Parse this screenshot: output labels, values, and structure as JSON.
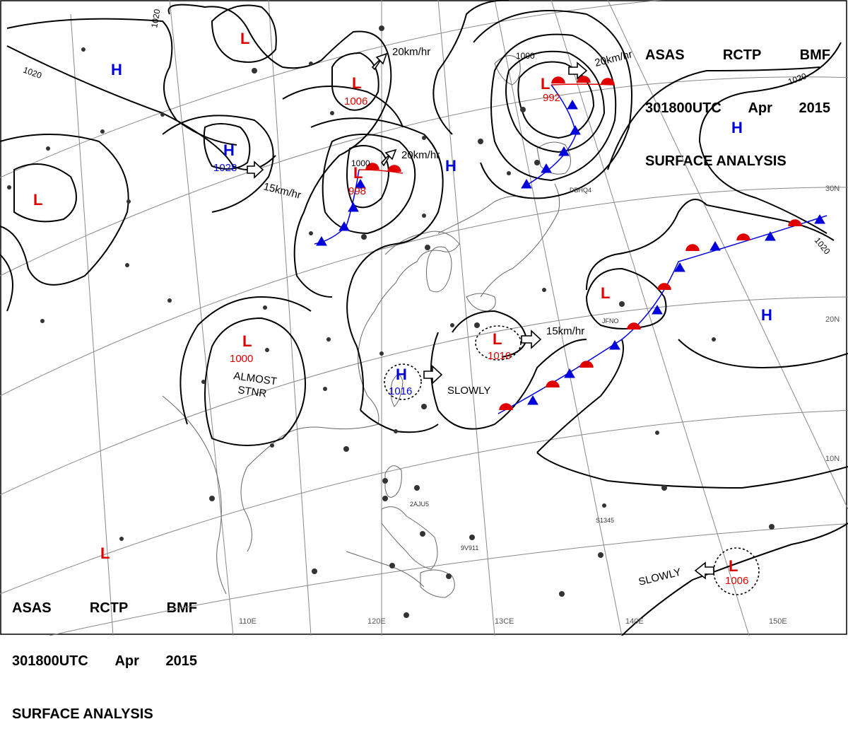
{
  "header": {
    "line1": [
      "ASAS",
      "RCTP",
      "BMF"
    ],
    "line2": [
      "301800UTC",
      "Apr",
      "2015"
    ],
    "line3": "SURFACE ANALYSIS"
  },
  "colors": {
    "low": "#e00000",
    "high": "#0000dd",
    "isobar": "#000000",
    "grid": "#888888"
  },
  "pressure_systems": [
    {
      "id": "L-mongolia",
      "type": "L",
      "value": ""
    },
    {
      "id": "L-north",
      "type": "L",
      "value": "1006"
    },
    {
      "id": "L-kamchatka",
      "type": "L",
      "value": "992"
    },
    {
      "id": "L-manchuria",
      "type": "L",
      "value": "998"
    },
    {
      "id": "L-west",
      "type": "L",
      "value": ""
    },
    {
      "id": "L-sichuan",
      "type": "L",
      "value": "1000"
    },
    {
      "id": "L-pacific",
      "type": "L",
      "value": ""
    },
    {
      "id": "L-okinawa",
      "type": "L",
      "value": "1010"
    },
    {
      "id": "L-guam",
      "type": "L",
      "value": "1006"
    },
    {
      "id": "L-south",
      "type": "L",
      "value": ""
    },
    {
      "id": "H-siberia",
      "type": "H",
      "value": ""
    },
    {
      "id": "H-mongolia",
      "type": "H",
      "value": "1028"
    },
    {
      "id": "H-korea",
      "type": "H",
      "value": ""
    },
    {
      "id": "H-taiwan",
      "type": "H",
      "value": "1016"
    },
    {
      "id": "H-pacific-n",
      "type": "H",
      "value": ""
    },
    {
      "id": "H-pacific",
      "type": "H",
      "value": ""
    }
  ],
  "isobar_labels": [
    "1020",
    "1020",
    "1000",
    "1000",
    "1020",
    "1020"
  ],
  "motion_labels": [
    "20km/hr",
    "20km/hr",
    "20km/hr",
    "15km/hr",
    "15km/hr",
    "SLOWLY",
    "SLOWLY"
  ],
  "annotation": {
    "line1": "ALMOST",
    "line2": "STNR"
  },
  "latitude_labels": [
    "30N",
    "20N",
    "10N"
  ],
  "longitude_labels": [
    "110E",
    "120E",
    "13CE",
    "140E",
    "150E"
  ],
  "station_labels": [
    "DBHQ4",
    "JFNO",
    "2AJU5",
    "9V911",
    "S1345"
  ]
}
